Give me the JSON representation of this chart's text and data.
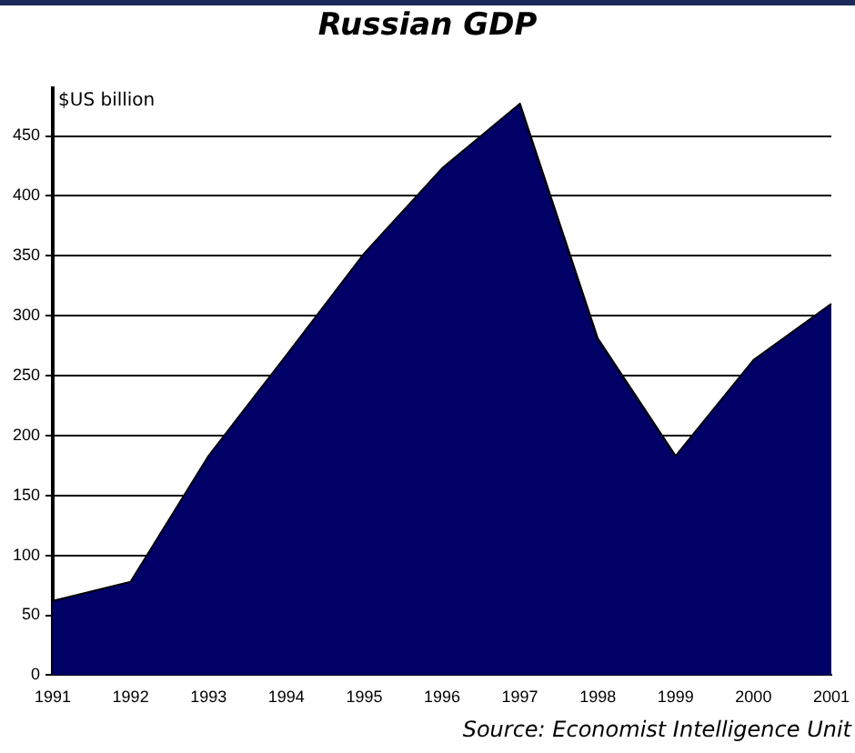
{
  "chart_data": {
    "type": "area",
    "title": "Russian GDP",
    "ylabel": "$US billion",
    "categories": [
      "1991",
      "1992",
      "1993",
      "1994",
      "1995",
      "1996",
      "1997",
      "1998",
      "1999",
      "2000",
      "2001"
    ],
    "series": [
      {
        "color": "#000066",
        "values": [
          62,
          78,
          183,
          267,
          352,
          423,
          477,
          281,
          183,
          263,
          310
        ]
      }
    ],
    "ylim": [
      0,
      490
    ],
    "yticks": [
      0,
      50,
      100,
      150,
      200,
      250,
      300,
      350,
      400,
      450
    ],
    "grid": "y",
    "legend": false,
    "annotations": [
      "Source: Economist Intelligence Unit"
    ]
  }
}
